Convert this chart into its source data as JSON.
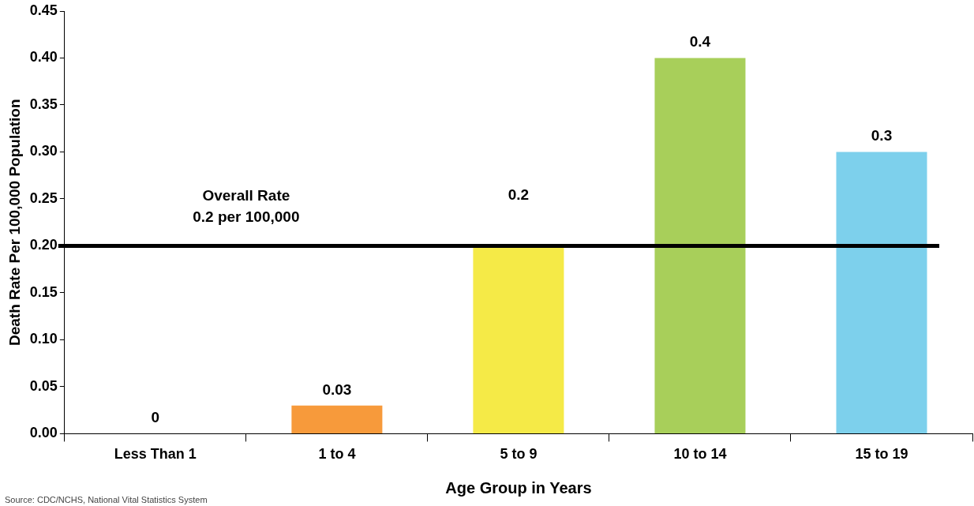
{
  "chart_data": {
    "type": "bar",
    "xlabel": "Age Group in Years",
    "ylabel": "Death Rate Per 100,000 Population",
    "categories": [
      "Less Than 1",
      "1 to 4",
      "5 to 9",
      "10 to 14",
      "15 to 19"
    ],
    "values": [
      0,
      0.03,
      0.2,
      0.4,
      0.3
    ],
    "colors": [
      "#f79a3b",
      "#f79a3b",
      "#f5ea47",
      "#a8cf5a",
      "#7dd0ec"
    ],
    "data_labels": true,
    "ylim": [
      0,
      0.45
    ],
    "yticks": [
      {
        "value": 0,
        "label": "0.00"
      },
      0.05,
      {
        "value": 0.1,
        "label": "0.10"
      },
      0.15,
      {
        "value": 0.2,
        "label": "0.20"
      },
      0.25,
      {
        "value": 0.3,
        "label": "0.30"
      },
      0.35,
      {
        "value": 0.4,
        "label": "0.40"
      },
      0.45
    ],
    "ref_lines": [
      {
        "axis": "y",
        "value": 0.2,
        "label": "Overall Rate\n0.2 per 100,000",
        "color": "#000000"
      }
    ],
    "annotations": [
      "Source: CDC/NCHS, National Vital Statistics System"
    ],
    "grid": false,
    "legend": false
  }
}
